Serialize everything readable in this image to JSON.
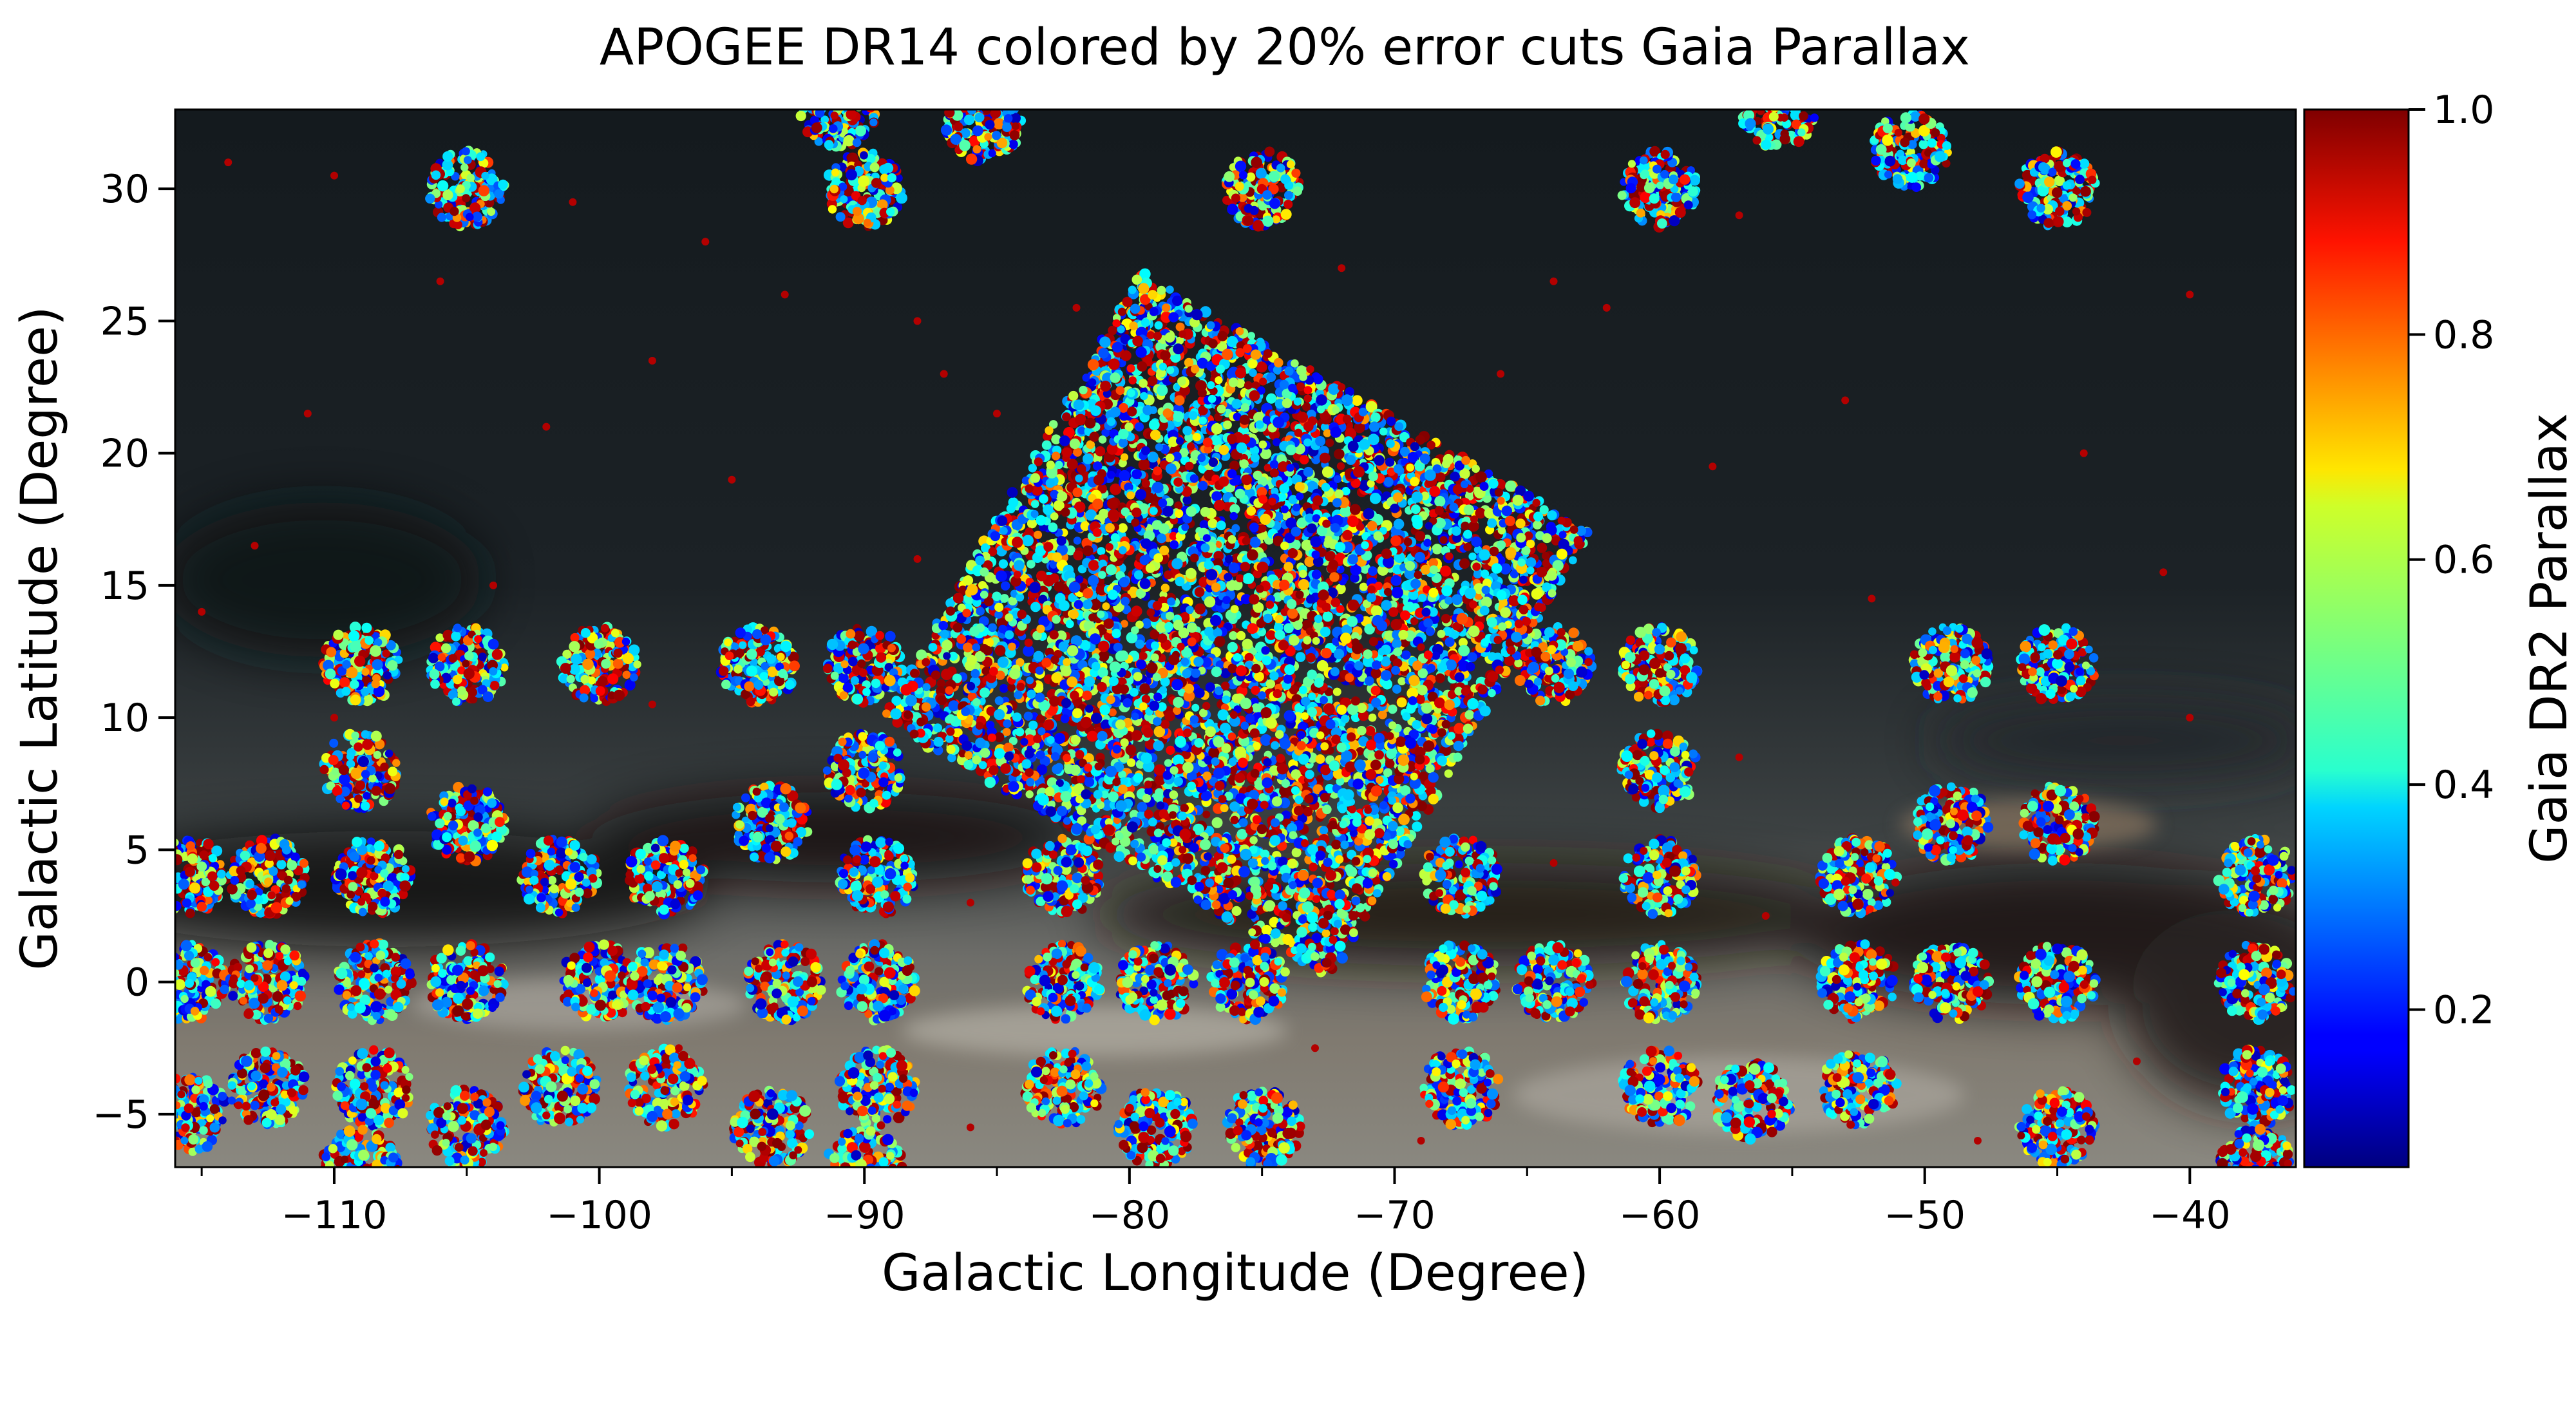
{
  "chart_data": {
    "type": "scatter",
    "title": "APOGEE DR14 colored by 20% error cuts Gaia Parallax",
    "xlabel": "Galactic Longitude (Degree)",
    "ylabel": "Galactic Latitude (Degree)",
    "xlim": [
      -116,
      -36
    ],
    "ylim": [
      -7,
      33
    ],
    "x_ticks": [
      -110,
      -100,
      -90,
      -80,
      -70,
      -60,
      -50,
      -40
    ],
    "x_tick_labels": [
      "−110",
      "−100",
      "−90",
      "−80",
      "−70",
      "−60",
      "−50",
      "−40"
    ],
    "y_ticks": [
      -5,
      0,
      5,
      10,
      15,
      20,
      25,
      30
    ],
    "y_tick_labels": [
      "−5",
      "0",
      "5",
      "10",
      "15",
      "20",
      "25",
      "30"
    ],
    "background": "Milky Way sky image (dark dust lanes along the Galactic plane near b = 0)",
    "colorbar": {
      "label": "Gaia DR2 Parallax",
      "colormap": "jet",
      "range": [
        0.06,
        1.0
      ],
      "ticks": [
        0.2,
        0.4,
        0.6,
        0.8,
        1.0
      ],
      "tick_labels": [
        "0.2",
        "0.4",
        "0.6",
        "0.8",
        "1.0"
      ]
    },
    "fields": [
      {
        "l": -105,
        "b": 30
      },
      {
        "l": -90,
        "b": 30
      },
      {
        "l": -75,
        "b": 30
      },
      {
        "l": -60,
        "b": 30
      },
      {
        "l": -45,
        "b": 30
      },
      {
        "l": -50.5,
        "b": 31.5
      },
      {
        "l": -55.5,
        "b": 33
      },
      {
        "l": -91,
        "b": 33
      },
      {
        "l": -85.5,
        "b": 32.5
      },
      {
        "l": -109,
        "b": 12
      },
      {
        "l": -105,
        "b": 12
      },
      {
        "l": -100,
        "b": 12
      },
      {
        "l": -94,
        "b": 12
      },
      {
        "l": -90,
        "b": 12
      },
      {
        "l": -64,
        "b": 12
      },
      {
        "l": -60,
        "b": 12
      },
      {
        "l": -49,
        "b": 12
      },
      {
        "l": -45,
        "b": 12
      },
      {
        "l": -109,
        "b": 8
      },
      {
        "l": -90,
        "b": 8
      },
      {
        "l": -60,
        "b": 8
      },
      {
        "l": -105,
        "b": 6
      },
      {
        "l": -93.5,
        "b": 6
      },
      {
        "l": -49,
        "b": 6
      },
      {
        "l": -45,
        "b": 6
      },
      {
        "l": -115.5,
        "b": 4
      },
      {
        "l": -112.5,
        "b": 4
      },
      {
        "l": -108.5,
        "b": 4
      },
      {
        "l": -101.5,
        "b": 4
      },
      {
        "l": -97.5,
        "b": 4
      },
      {
        "l": -89.5,
        "b": 4
      },
      {
        "l": -82.5,
        "b": 4
      },
      {
        "l": -67.5,
        "b": 4
      },
      {
        "l": -60,
        "b": 4
      },
      {
        "l": -52.5,
        "b": 4
      },
      {
        "l": -37.5,
        "b": 4
      },
      {
        "l": -115.5,
        "b": 0
      },
      {
        "l": -112.5,
        "b": 0
      },
      {
        "l": -108.5,
        "b": 0
      },
      {
        "l": -105,
        "b": 0
      },
      {
        "l": -100,
        "b": 0
      },
      {
        "l": -97.5,
        "b": 0
      },
      {
        "l": -93,
        "b": 0
      },
      {
        "l": -89.5,
        "b": 0
      },
      {
        "l": -82.5,
        "b": 0
      },
      {
        "l": -79,
        "b": 0
      },
      {
        "l": -75.5,
        "b": 0
      },
      {
        "l": -67.5,
        "b": 0
      },
      {
        "l": -64,
        "b": 0
      },
      {
        "l": -60,
        "b": 0
      },
      {
        "l": -52.5,
        "b": 0
      },
      {
        "l": -49,
        "b": 0
      },
      {
        "l": -45,
        "b": 0
      },
      {
        "l": -37.5,
        "b": 0
      },
      {
        "l": -115.5,
        "b": -5
      },
      {
        "l": -112.5,
        "b": -4
      },
      {
        "l": -108.5,
        "b": -4
      },
      {
        "l": -101.5,
        "b": -4
      },
      {
        "l": -97.5,
        "b": -4
      },
      {
        "l": -89.5,
        "b": -4
      },
      {
        "l": -82.5,
        "b": -4
      },
      {
        "l": -67.5,
        "b": -4
      },
      {
        "l": -60,
        "b": -4
      },
      {
        "l": -56.5,
        "b": -4.5
      },
      {
        "l": -52.5,
        "b": -4
      },
      {
        "l": -37.5,
        "b": -4
      },
      {
        "l": -105,
        "b": -5.5
      },
      {
        "l": -93.5,
        "b": -5.5
      },
      {
        "l": -79,
        "b": -5.5
      },
      {
        "l": -75,
        "b": -5.5
      },
      {
        "l": -45,
        "b": -5.5
      },
      {
        "l": -109,
        "b": -7
      },
      {
        "l": -90,
        "b": -7
      },
      {
        "l": -37.5,
        "b": -7
      }
    ],
    "tiled_region": {
      "center_l": -76,
      "center_b": 13.5,
      "grid": 6,
      "spacing_deg": 3.3,
      "rotation_deg": -30,
      "tile_size_deg": 3.1
    },
    "sparse_points": [
      {
        "l": -114,
        "b": 31
      },
      {
        "l": -110,
        "b": 30.5
      },
      {
        "l": -101,
        "b": 29.5
      },
      {
        "l": -96,
        "b": 28
      },
      {
        "l": -106,
        "b": 26.5
      },
      {
        "l": -93,
        "b": 26
      },
      {
        "l": -82,
        "b": 25.5
      },
      {
        "l": -88,
        "b": 25
      },
      {
        "l": -72,
        "b": 27
      },
      {
        "l": -64,
        "b": 26.5
      },
      {
        "l": -62,
        "b": 25.5
      },
      {
        "l": -57,
        "b": 29
      },
      {
        "l": -40,
        "b": 26
      },
      {
        "l": -98,
        "b": 23.5
      },
      {
        "l": -87,
        "b": 23
      },
      {
        "l": -78,
        "b": 24.5
      },
      {
        "l": -66,
        "b": 23
      },
      {
        "l": -53,
        "b": 22
      },
      {
        "l": -111,
        "b": 21.5
      },
      {
        "l": -102,
        "b": 21
      },
      {
        "l": -85,
        "b": 21.5
      },
      {
        "l": -44,
        "b": 20
      },
      {
        "l": -95,
        "b": 19
      },
      {
        "l": -72,
        "b": 22.5
      },
      {
        "l": -58,
        "b": 19.5
      },
      {
        "l": -113,
        "b": 16.5
      },
      {
        "l": -104,
        "b": 15
      },
      {
        "l": -67,
        "b": 17.5
      },
      {
        "l": -52,
        "b": 14.5
      },
      {
        "l": -41,
        "b": 15.5
      },
      {
        "l": -88,
        "b": 16
      },
      {
        "l": -110,
        "b": 10
      },
      {
        "l": -40,
        "b": 10
      },
      {
        "l": -98,
        "b": 10.5
      },
      {
        "l": -57,
        "b": 8.5
      },
      {
        "l": -86,
        "b": 3
      },
      {
        "l": -78,
        "b": 5
      },
      {
        "l": -71,
        "b": 6.5
      },
      {
        "l": -64,
        "b": 4.5
      },
      {
        "l": -73,
        "b": -2.5
      },
      {
        "l": -69,
        "b": -6
      },
      {
        "l": -86,
        "b": -5.5
      },
      {
        "l": -97,
        "b": -2.5
      },
      {
        "l": -56,
        "b": 2.5
      },
      {
        "l": -42,
        "b": -3
      },
      {
        "l": -48,
        "b": -6
      },
      {
        "l": -115,
        "b": 14
      }
    ]
  }
}
